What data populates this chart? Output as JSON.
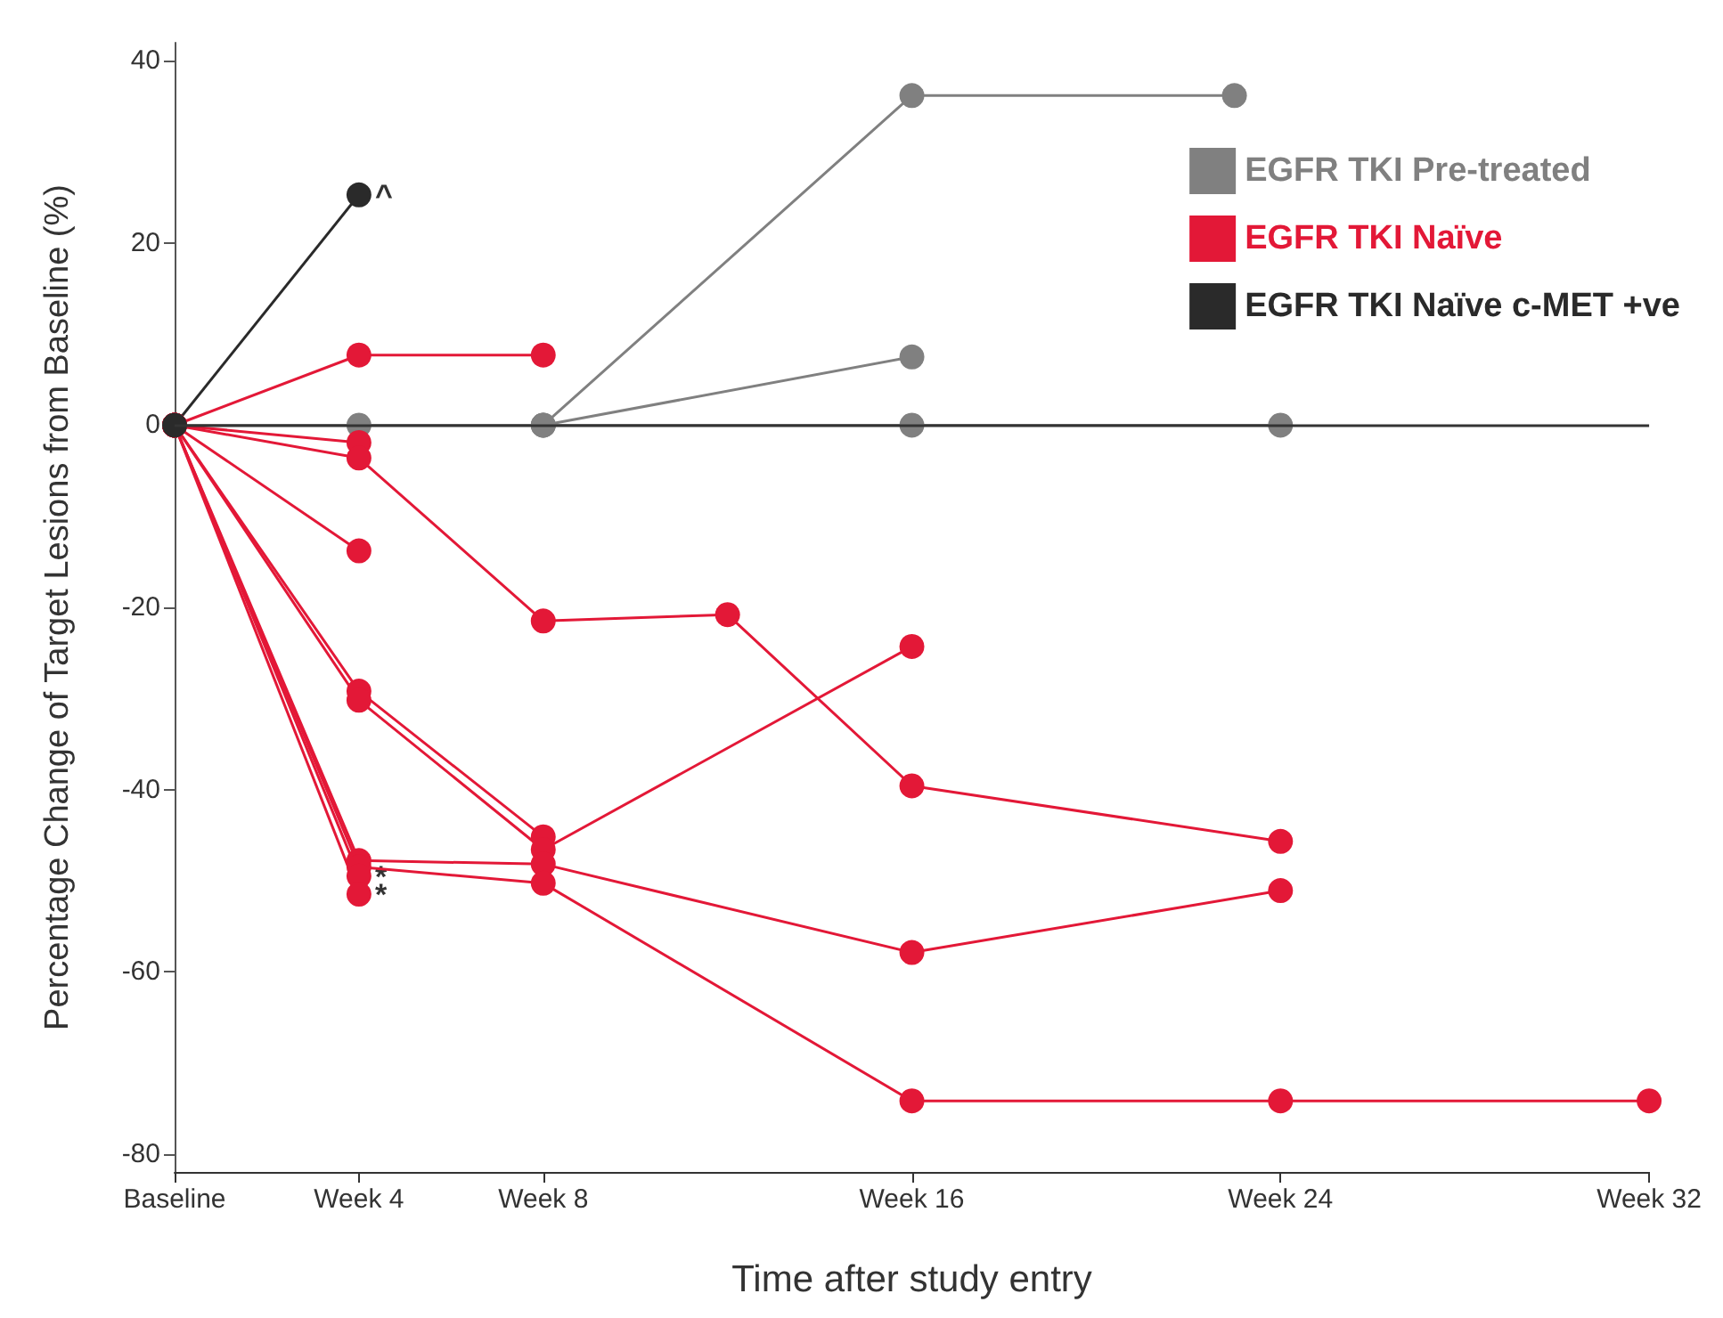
{
  "chart_data": {
    "type": "line",
    "xlabel": "Time after study entry",
    "ylabel": "Percentage Change of Target Lesions from Baseline (%)",
    "categories": [
      "Baseline",
      null,
      null,
      null,
      "Week 4",
      null,
      null,
      null,
      "Week 8",
      null,
      null,
      null,
      null,
      null,
      null,
      null,
      "Week 16",
      null,
      null,
      null,
      null,
      null,
      null,
      null,
      "Week 24",
      null,
      null,
      null,
      null,
      null,
      null,
      null,
      "Week 32"
    ],
    "ylim": [
      -82,
      42
    ],
    "yticks": [
      -80,
      -60,
      -40,
      -20,
      0,
      20,
      40
    ],
    "grid": false,
    "legend": "top right",
    "marker": "circle",
    "line_style": "solid",
    "ref_lines": [
      {
        "axis": "y",
        "value": 0,
        "color": "#333333"
      }
    ],
    "series": [
      {
        "name": "EGFR TKI Pre-treated",
        "color": "#808080",
        "values": [
          0,
          null,
          null,
          null,
          0,
          null,
          null,
          null,
          0,
          null,
          null,
          null,
          null,
          null,
          null,
          null,
          0,
          null,
          null,
          null,
          null,
          null,
          null,
          null,
          0,
          null,
          null,
          null,
          null,
          null,
          null,
          null,
          null
        ]
      },
      {
        "color": "#808080",
        "values": [
          0,
          null,
          null,
          null,
          null,
          null,
          null,
          null,
          0,
          null,
          null,
          null,
          null,
          null,
          null,
          null,
          36.2,
          null,
          null,
          null,
          null,
          null,
          null,
          36.2,
          null,
          null,
          null,
          null,
          null,
          null,
          null,
          null,
          null
        ]
      },
      {
        "color": "#808080",
        "values": [
          0,
          null,
          null,
          null,
          null,
          null,
          null,
          null,
          0,
          null,
          null,
          null,
          null,
          null,
          null,
          null,
          7.5,
          null,
          null,
          null,
          null,
          null,
          null,
          null,
          null,
          null,
          null,
          null,
          null,
          null,
          null,
          null,
          null
        ]
      },
      {
        "name": "EGFR TKI Naïve",
        "color": "#e31837",
        "values": [
          0,
          null,
          null,
          null,
          7.7,
          null,
          null,
          null,
          7.7,
          null,
          null,
          null,
          null,
          null,
          null,
          null,
          null,
          null,
          null,
          null,
          null,
          null,
          null,
          null,
          null,
          null,
          null,
          null,
          null,
          null,
          null,
          null,
          null
        ]
      },
      {
        "color": "#e31837",
        "values": [
          0,
          null,
          null,
          null,
          -1.9,
          null,
          null,
          null,
          null,
          null,
          null,
          null,
          null,
          null,
          null,
          null,
          null,
          null,
          null,
          null,
          null,
          null,
          null,
          null,
          null,
          null,
          null,
          null,
          null,
          null,
          null,
          null,
          null
        ]
      },
      {
        "color": "#e31837",
        "values": [
          0,
          null,
          null,
          null,
          -3.6,
          null,
          null,
          null,
          -21.5,
          null,
          null,
          null,
          -20.8,
          null,
          null,
          null,
          -39.6,
          null,
          null,
          null,
          null,
          null,
          null,
          null,
          -45.7,
          null,
          null,
          null,
          null,
          null,
          null,
          null,
          null
        ]
      },
      {
        "color": "#e31837",
        "values": [
          0,
          null,
          null,
          null,
          -13.8,
          null,
          null,
          null,
          null,
          null,
          null,
          null,
          null,
          null,
          null,
          null,
          null,
          null,
          null,
          null,
          null,
          null,
          null,
          null,
          null,
          null,
          null,
          null,
          null,
          null,
          null,
          null,
          null
        ]
      },
      {
        "color": "#e31837",
        "values": [
          0,
          null,
          null,
          null,
          -29.2,
          null,
          null,
          null,
          -45.2,
          null,
          null,
          null,
          null,
          null,
          null,
          null,
          null,
          null,
          null,
          null,
          null,
          null,
          null,
          null,
          null,
          null,
          null,
          null,
          null,
          null,
          null,
          null,
          null
        ]
      },
      {
        "color": "#e31837",
        "values": [
          0,
          null,
          null,
          null,
          -30.2,
          null,
          null,
          null,
          -46.6,
          null,
          null,
          null,
          null,
          null,
          null,
          null,
          -24.3,
          null,
          null,
          null,
          null,
          null,
          null,
          null,
          null,
          null,
          null,
          null,
          null,
          null,
          null,
          null,
          null
        ]
      },
      {
        "color": "#e31837",
        "values": [
          0,
          null,
          null,
          null,
          -47.8,
          null,
          null,
          null,
          -48.2,
          null,
          null,
          null,
          null,
          null,
          null,
          null,
          -57.9,
          null,
          null,
          null,
          null,
          null,
          null,
          null,
          -51.1,
          null,
          null,
          null,
          null,
          null,
          null,
          null,
          null
        ]
      },
      {
        "color": "#e31837",
        "values": [
          0,
          null,
          null,
          null,
          -48.5,
          null,
          null,
          null,
          -50.3,
          null,
          null,
          null,
          null,
          null,
          null,
          null,
          -74.2,
          null,
          null,
          null,
          null,
          null,
          null,
          null,
          -74.2,
          null,
          null,
          null,
          null,
          null,
          null,
          null,
          -74.2
        ]
      },
      {
        "color": "#e31837",
        "values": [
          0,
          null,
          null,
          null,
          -49.5,
          null,
          null,
          null,
          null,
          null,
          null,
          null,
          null,
          null,
          null,
          null,
          null,
          null,
          null,
          null,
          null,
          null,
          null,
          null,
          null,
          null,
          null,
          null,
          null,
          null,
          null,
          null,
          null
        ]
      },
      {
        "color": "#e31837",
        "values": [
          0,
          null,
          null,
          null,
          -51.5,
          null,
          null,
          null,
          null,
          null,
          null,
          null,
          null,
          null,
          null,
          null,
          null,
          null,
          null,
          null,
          null,
          null,
          null,
          null,
          null,
          null,
          null,
          null,
          null,
          null,
          null,
          null,
          null
        ]
      },
      {
        "name": "EGFR TKI Naïve c-MET +ve",
        "color": "#2a2a2a",
        "values": [
          0,
          null,
          null,
          null,
          25.3,
          null,
          null,
          null,
          null,
          null,
          null,
          null,
          null,
          null,
          null,
          null,
          null,
          null,
          null,
          null,
          null,
          null,
          null,
          null,
          null,
          null,
          null,
          null,
          null,
          null,
          null,
          null,
          null
        ]
      }
    ],
    "annotations": [
      {
        "text": "^",
        "x": "Week 4",
        "y": 25.3
      },
      {
        "text": "*",
        "x": "Week 4",
        "y": -49.5
      },
      {
        "text": "*",
        "x": "Week 4",
        "y": -51.5
      }
    ]
  }
}
